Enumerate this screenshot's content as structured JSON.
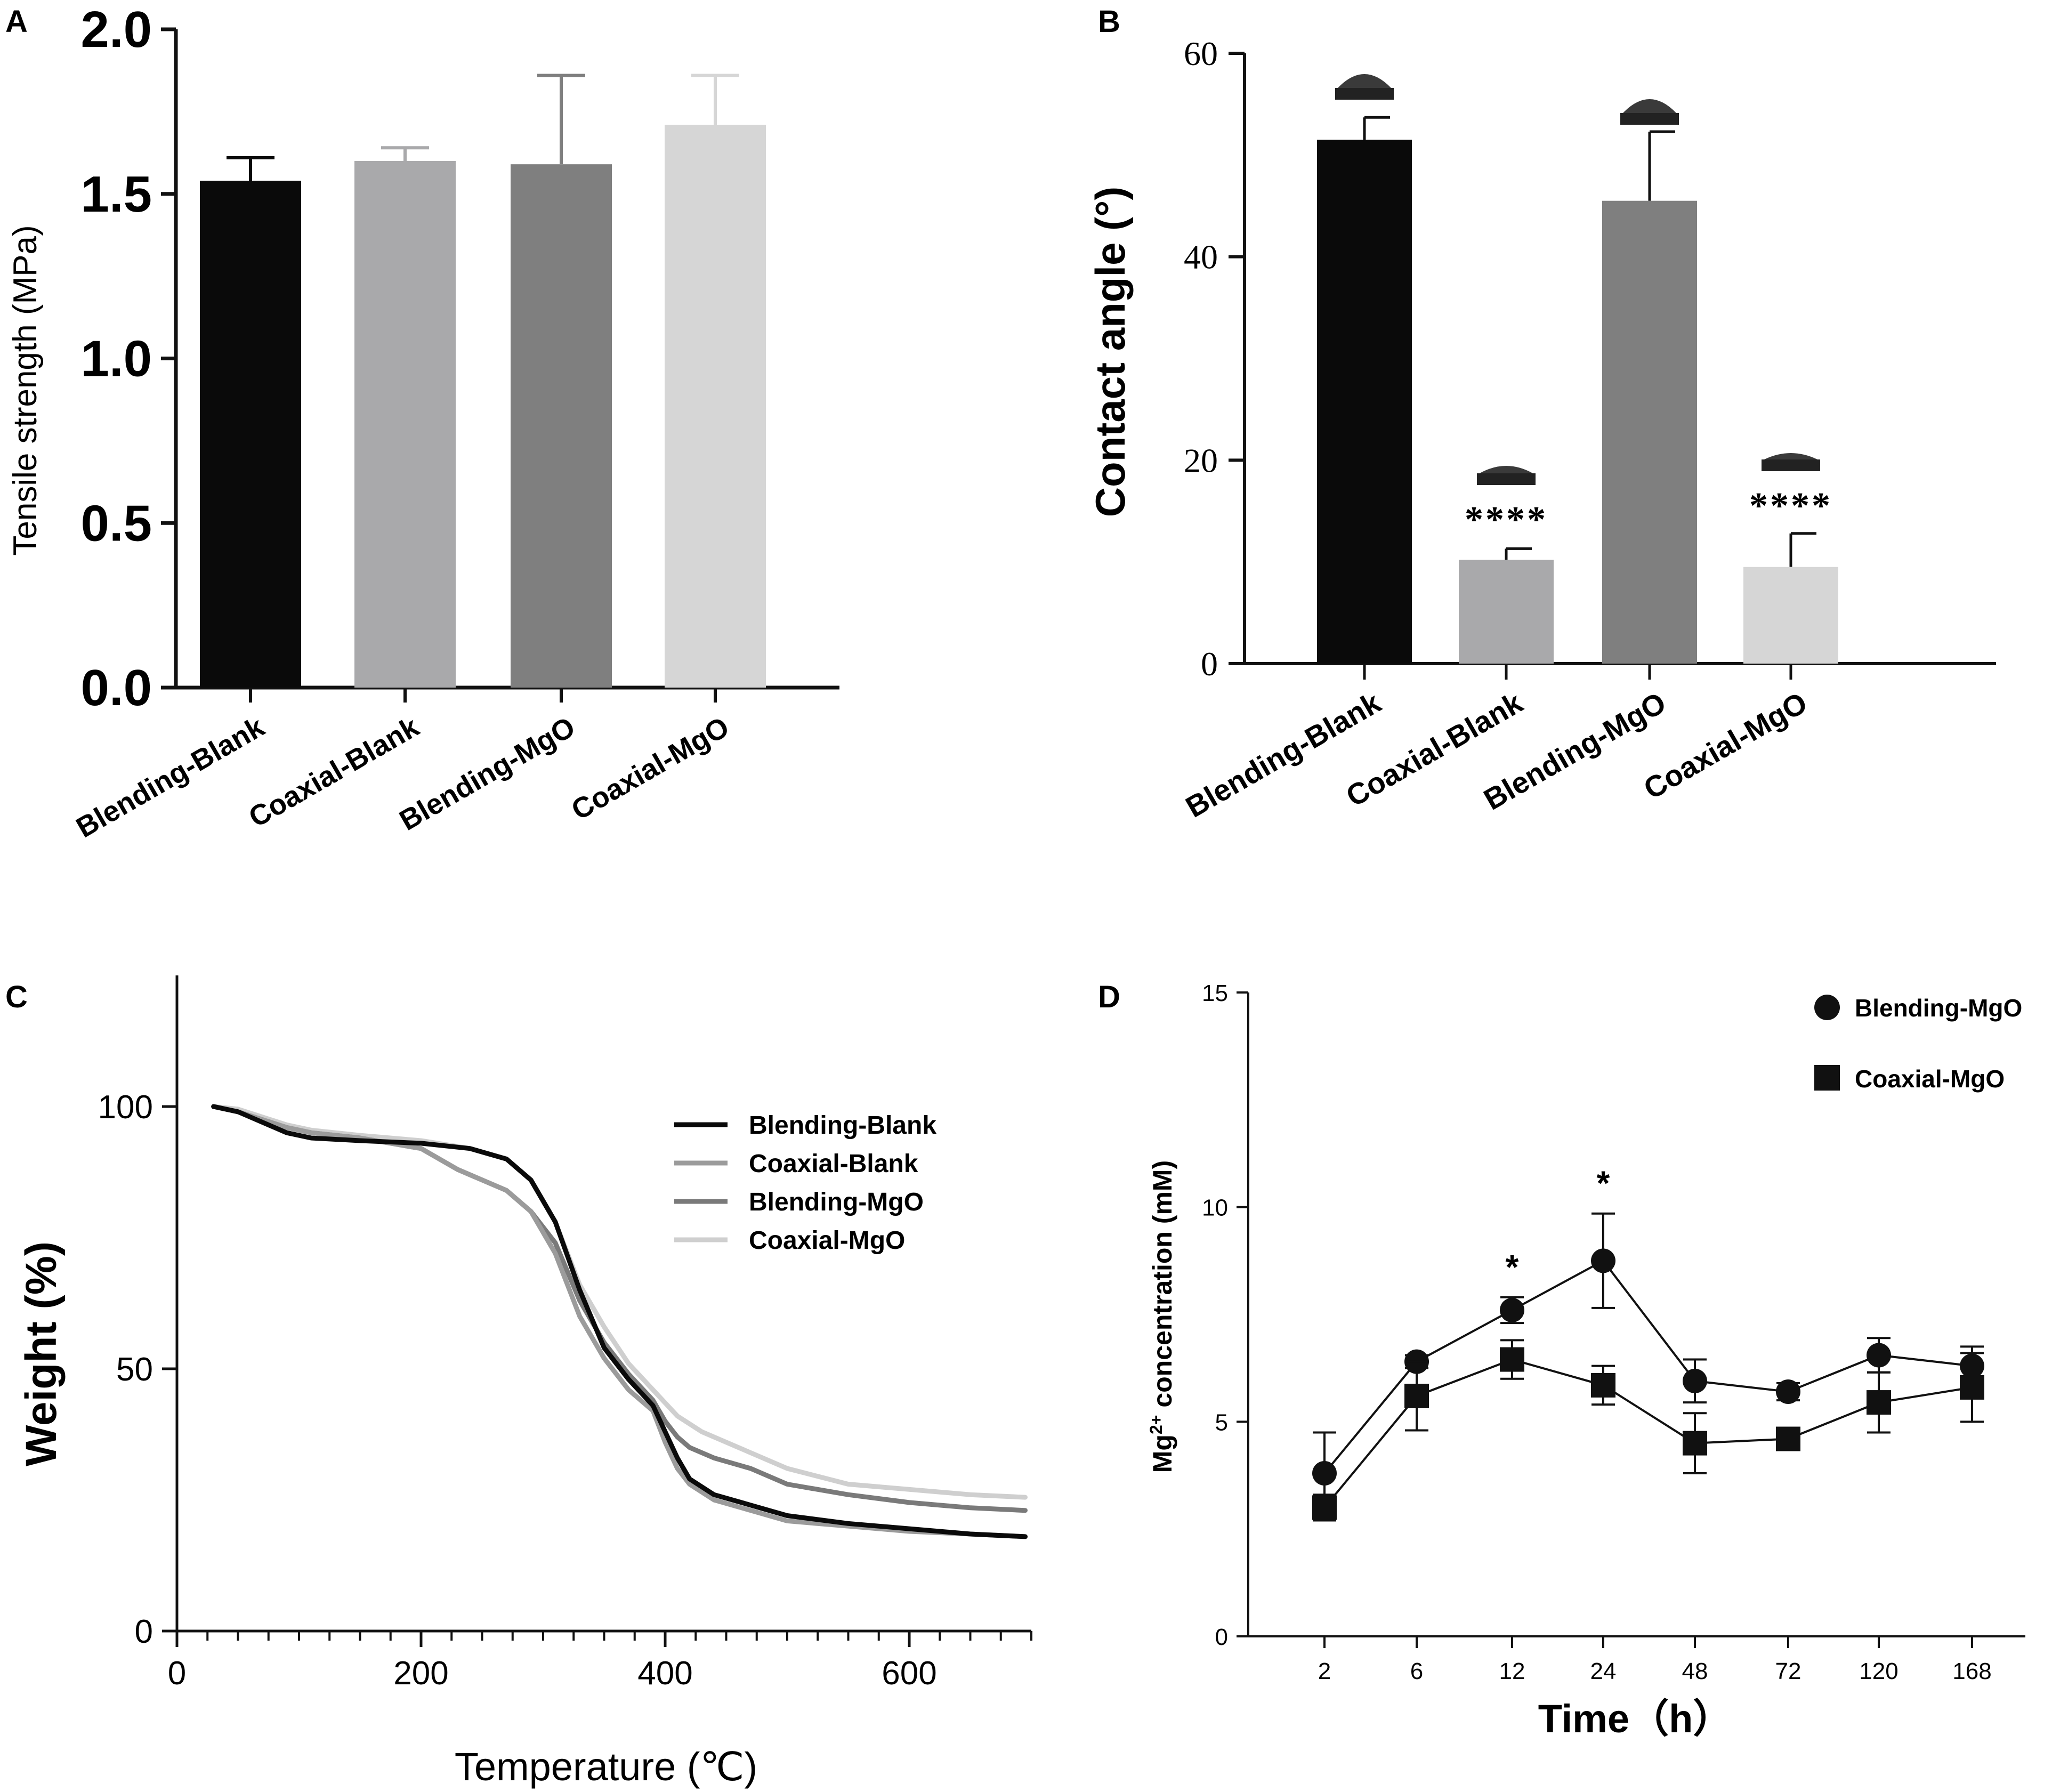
{
  "colors": {
    "axis": "#111111",
    "blending_blank": "#0a0a0a",
    "coaxial_blank": "#a9a9ab",
    "blending_mgo": "#7f7f7f",
    "coaxial_mgo": "#d6d6d6",
    "c_coaxial_blank": "#9b9b9b",
    "c_blending_mgo": "#7a7a7a",
    "c_coaxial_mgo": "#cfcfcf",
    "line_d": "#111111"
  },
  "chart_data": [
    {
      "panel": "A",
      "type": "bar",
      "title": "",
      "xlabel": "",
      "ylabel": "Tensile strength (MPa)",
      "ylim": [
        0,
        2.0
      ],
      "yticks": [
        "0.0",
        "0.5",
        "1.0",
        "1.5",
        "2.0"
      ],
      "categories": [
        "Blending-Blank",
        "Coaxial-Blank",
        "Blending-MgO",
        "Coaxial-MgO"
      ],
      "values": [
        1.54,
        1.6,
        1.59,
        1.71
      ],
      "error": [
        0.07,
        0.04,
        0.27,
        0.15
      ],
      "bar_colors": [
        "blending_blank",
        "coaxial_blank",
        "blending_mgo",
        "coaxial_mgo"
      ]
    },
    {
      "panel": "B",
      "type": "bar",
      "title": "",
      "xlabel": "",
      "ylabel": "Contact angle (°)",
      "ylim": [
        0,
        60
      ],
      "yticks": [
        "0",
        "20",
        "40",
        "60"
      ],
      "categories": [
        "Blending-Blank",
        "Coaxial-Blank",
        "Blending-MgO",
        "Coaxial-MgO"
      ],
      "values": [
        51.5,
        10.2,
        45.5,
        9.5
      ],
      "error": [
        2.2,
        1.1,
        6.8,
        3.3
      ],
      "significance": [
        "",
        "****",
        "",
        "****"
      ],
      "bar_colors": [
        "blending_blank",
        "coaxial_blank",
        "blending_mgo",
        "coaxial_mgo"
      ]
    },
    {
      "panel": "C",
      "type": "line",
      "title": "",
      "xlabel": "Temperature (℃)",
      "ylabel": "Weight (%)",
      "xlim": [
        0,
        700
      ],
      "ylim": [
        0,
        125
      ],
      "xticks": [
        "0",
        "200",
        "400",
        "600"
      ],
      "yticks": [
        "0",
        "50",
        "100"
      ],
      "legend_position": "center-right",
      "series": [
        {
          "name": "Blending-Blank",
          "color": "blending_blank",
          "x": [
            30,
            50,
            70,
            90,
            110,
            150,
            200,
            240,
            270,
            290,
            310,
            330,
            350,
            370,
            390,
            400,
            410,
            420,
            440,
            470,
            500,
            550,
            600,
            650,
            695
          ],
          "y": [
            100,
            99,
            97,
            95,
            94,
            93.5,
            93,
            92,
            90,
            86,
            78,
            65,
            54,
            48,
            43,
            38,
            33,
            29,
            26,
            24,
            22,
            20.5,
            19.5,
            18.5,
            18
          ]
        },
        {
          "name": "Coaxial-Blank",
          "color": "c_coaxial_blank",
          "x": [
            30,
            50,
            70,
            90,
            110,
            150,
            200,
            230,
            250,
            270,
            290,
            310,
            330,
            350,
            370,
            390,
            400,
            410,
            420,
            440,
            470,
            500,
            550,
            600,
            650,
            695
          ],
          "y": [
            100,
            99,
            97.5,
            96,
            95,
            94,
            92,
            88,
            86,
            84,
            80,
            72,
            60,
            52,
            46,
            42,
            36,
            31,
            28,
            25,
            23,
            21,
            20,
            19,
            18.5,
            18
          ]
        },
        {
          "name": "Blending-MgO",
          "color": "c_blending_mgo",
          "x": [
            30,
            50,
            70,
            90,
            110,
            150,
            200,
            230,
            250,
            270,
            290,
            310,
            330,
            350,
            370,
            390,
            400,
            410,
            420,
            440,
            470,
            500,
            550,
            600,
            650,
            695
          ],
          "y": [
            100,
            99,
            97.5,
            96,
            95,
            94,
            92,
            88,
            86,
            84,
            80,
            74,
            63,
            55,
            49,
            44,
            40,
            37,
            35,
            33,
            31,
            28,
            26,
            24.5,
            23.5,
            23
          ]
        },
        {
          "name": "Coaxial-MgO",
          "color": "c_coaxial_mgo",
          "x": [
            30,
            50,
            70,
            90,
            110,
            150,
            200,
            240,
            270,
            290,
            310,
            330,
            350,
            370,
            390,
            410,
            430,
            460,
            500,
            550,
            600,
            650,
            695
          ],
          "y": [
            100,
            99.5,
            98,
            96.5,
            95.5,
            94.5,
            93.5,
            92,
            90,
            86,
            78,
            66,
            58,
            51,
            46,
            41,
            38,
            35,
            31,
            28,
            27,
            26,
            25.5
          ]
        }
      ]
    },
    {
      "panel": "D",
      "type": "line",
      "title": "",
      "xlabel": "Time（h）",
      "ylabel_main": "Mg",
      "ylabel_sup": "2+",
      "ylabel_rest": " concentration (mM)",
      "ylim": [
        0,
        15
      ],
      "yticks": [
        "0",
        "5",
        "10",
        "15"
      ],
      "categories": [
        "2",
        "6",
        "12",
        "24",
        "48",
        "72",
        "120",
        "168"
      ],
      "legend_position": "top-right",
      "series": [
        {
          "name": "Blending-MgO",
          "marker": "circle",
          "values": [
            3.8,
            6.4,
            7.6,
            8.75,
            5.95,
            5.7,
            6.55,
            6.3
          ],
          "error": [
            0.95,
            0.15,
            0.3,
            1.1,
            0.5,
            0.2,
            0.4,
            0.45
          ]
        },
        {
          "name": "Coaxial-MgO",
          "marker": "square",
          "values": [
            3.0,
            5.6,
            6.45,
            5.85,
            4.5,
            4.6,
            5.45,
            5.8
          ],
          "error": [
            0.3,
            0.8,
            0.45,
            0.45,
            0.7,
            0.25,
            0.7,
            0.8
          ]
        }
      ],
      "significance": [
        "",
        "",
        "*",
        "*",
        "",
        "",
        "",
        ""
      ]
    }
  ],
  "panel_labels": [
    "A",
    "B",
    "C",
    "D"
  ]
}
